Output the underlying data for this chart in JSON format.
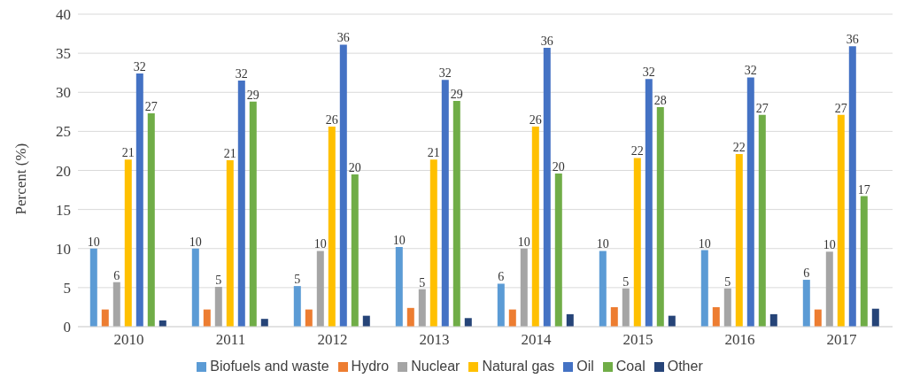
{
  "chart_data": {
    "type": "bar",
    "ylabel": "Percent (%)",
    "categories": [
      "2010",
      "2011",
      "2012",
      "2013",
      "2014",
      "2015",
      "2016",
      "2017"
    ],
    "series": [
      {
        "name": "Biofuels and waste",
        "color": "#5b9bd5",
        "values": [
          10.0,
          10.0,
          5.2,
          10.2,
          5.5,
          9.7,
          9.8,
          6.0
        ],
        "value_labels": [
          "10",
          "10",
          "5",
          "10",
          "6",
          "10",
          "10",
          "6"
        ]
      },
      {
        "name": "Hydro",
        "color": "#ed7d31",
        "values": [
          2.2,
          2.2,
          2.2,
          2.4,
          2.2,
          2.5,
          2.5,
          2.2
        ]
      },
      {
        "name": "Nuclear",
        "color": "#a5a5a5",
        "values": [
          5.7,
          5.1,
          9.7,
          4.8,
          10.0,
          4.9,
          4.9,
          9.6
        ],
        "value_labels": [
          "6",
          "5",
          "10",
          "5",
          "10",
          "5",
          "5",
          "10"
        ]
      },
      {
        "name": "Natural gas",
        "color": "#ffc000",
        "values": [
          21.4,
          21.3,
          25.6,
          21.4,
          25.6,
          21.6,
          22.1,
          27.1
        ],
        "value_labels": [
          "21",
          "21",
          "26",
          "21",
          "26",
          "22",
          "22",
          "27"
        ]
      },
      {
        "name": "Oil",
        "color": "#4472c4",
        "values": [
          32.4,
          31.5,
          36.1,
          31.6,
          35.7,
          31.7,
          31.9,
          35.9
        ],
        "value_labels": [
          "32",
          "32",
          "36",
          "32",
          "36",
          "32",
          "32",
          "36"
        ]
      },
      {
        "name": "Coal",
        "color": "#70ad47",
        "values": [
          27.3,
          28.8,
          19.5,
          28.9,
          19.6,
          28.1,
          27.1,
          16.7
        ],
        "value_labels": [
          "27",
          "29",
          "20",
          "29",
          "20",
          "28",
          "27",
          "17"
        ]
      },
      {
        "name": "Other",
        "color": "#264478",
        "values": [
          0.8,
          1.0,
          1.4,
          1.1,
          1.6,
          1.4,
          1.6,
          2.3
        ]
      }
    ],
    "ylim": [
      0,
      40
    ],
    "yticks": [
      0,
      5,
      10,
      15,
      20,
      25,
      30,
      35,
      40
    ],
    "grid": "y",
    "legend": "bottom"
  }
}
